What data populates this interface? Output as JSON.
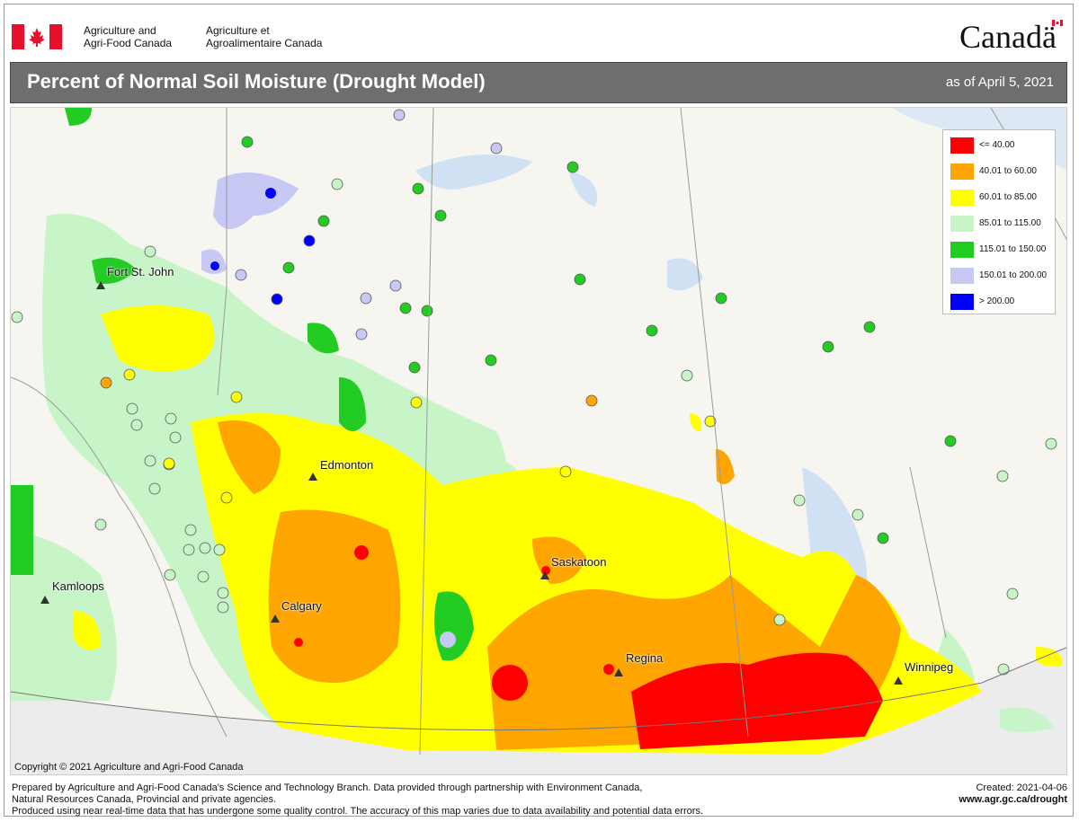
{
  "header": {
    "dept_en_line1": "Agriculture and",
    "dept_en_line2": "Agri-Food Canada",
    "dept_fr_line1": "Agriculture et",
    "dept_fr_line2": "Agroalimentaire Canada",
    "wordmark": "Canadä"
  },
  "title_bar": {
    "title": "Percent of Normal Soil Moisture (Drought Model)",
    "as_of": "as of April 5, 2021"
  },
  "legend": {
    "items": [
      {
        "label": "<= 40.00",
        "color": "#ff0000"
      },
      {
        "label": "40.01  to  60.00",
        "color": "#ffa500"
      },
      {
        "label": "60.01  to  85.00",
        "color": "#ffff00"
      },
      {
        "label": "85.01  to  115.00",
        "color": "#c8f5c8"
      },
      {
        "label": "115.01  to  150.00",
        "color": "#22cc22"
      },
      {
        "label": "150.01  to  200.00",
        "color": "#c8c8f5"
      },
      {
        "label": "> 200.00",
        "color": "#0000ff"
      }
    ]
  },
  "cities": [
    {
      "name": "Fort St. John"
    },
    {
      "name": "Edmonton"
    },
    {
      "name": "Kamloops"
    },
    {
      "name": "Calgary"
    },
    {
      "name": "Saskatoon"
    },
    {
      "name": "Regina"
    },
    {
      "name": "Winnipeg"
    }
  ],
  "map": {
    "copyright": "Copyright © 2021 Agriculture and Agri-Food Canada"
  },
  "footer": {
    "line1": "Prepared by Agriculture and Agri-Food Canada's Science and Technology Branch. Data provided through partnership with Environment Canada,",
    "line2": "Natural Resources Canada, Provincial and private agencies.",
    "line3": "Produced using near real-time data that has undergone some quality control. The accuracy of this map varies due to data availability and potential data errors.",
    "created": "Created: 2021-04-06",
    "url": "www.agr.gc.ca/drought"
  }
}
